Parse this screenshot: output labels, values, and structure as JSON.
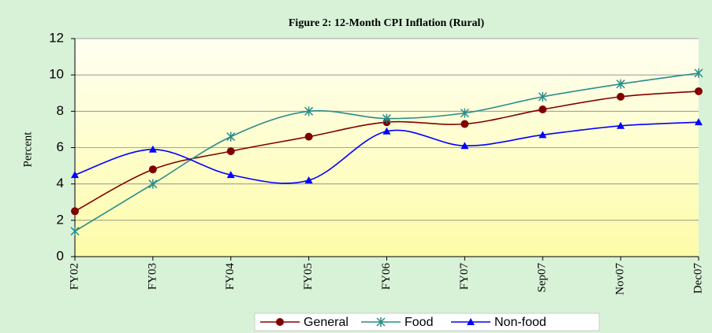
{
  "chart_data": {
    "type": "line",
    "title": "Figure 2:  12-Month CPI Inflation (Rural)",
    "y_label": "Percent",
    "categories": [
      "FY02",
      "FY03",
      "FY04",
      "FY05",
      "FY06",
      "FY07",
      "Sep07",
      "Nov07",
      "Dec07"
    ],
    "series": [
      {
        "name": "General",
        "color": "#800000",
        "marker": "circle",
        "values": [
          2.5,
          4.8,
          5.8,
          6.6,
          7.4,
          7.3,
          8.1,
          8.8,
          9.1
        ]
      },
      {
        "name": "Food",
        "color": "#2a8c8c",
        "marker": "star",
        "values": [
          1.4,
          4.0,
          6.6,
          8.0,
          7.6,
          7.9,
          8.8,
          9.5,
          10.1
        ]
      },
      {
        "name": "Non-food",
        "color": "#0000ff",
        "marker": "triangle",
        "values": [
          4.5,
          5.9,
          4.5,
          4.2,
          6.9,
          6.1,
          6.7,
          7.2,
          7.4
        ]
      }
    ],
    "ylim": [
      0,
      12
    ],
    "yticks": [
      0,
      2,
      4,
      6,
      8,
      10,
      12
    ],
    "grid": true,
    "legend": "bottom"
  }
}
